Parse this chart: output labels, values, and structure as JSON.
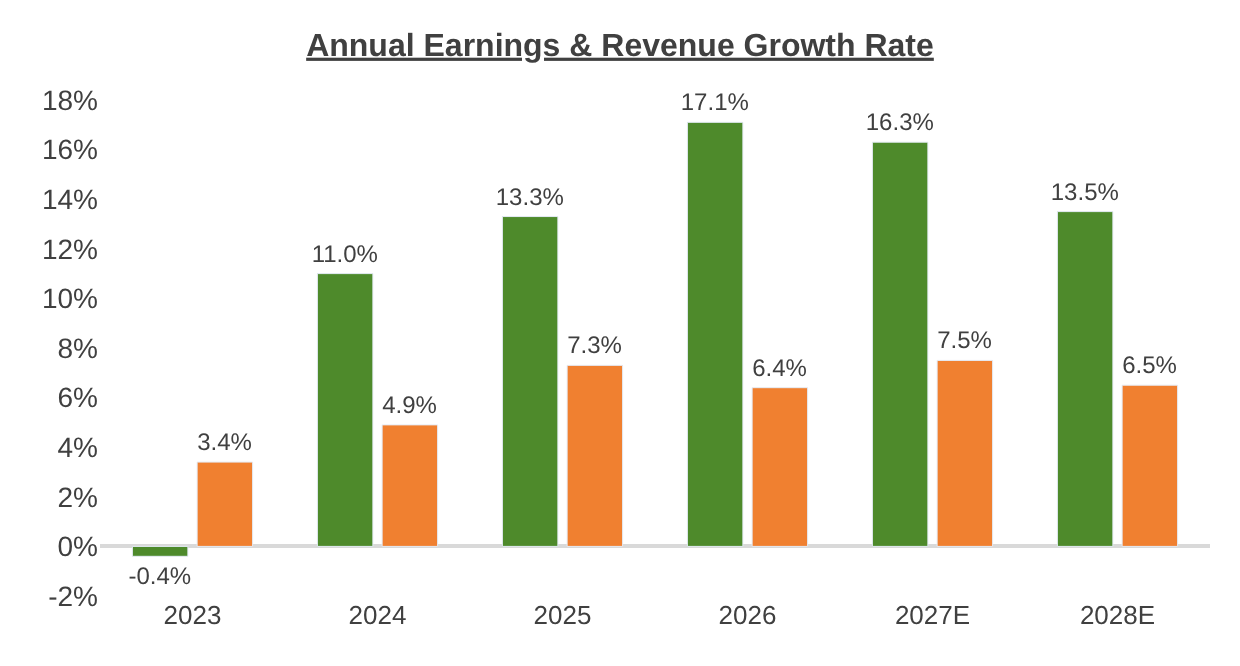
{
  "chart_data": {
    "type": "bar",
    "title": "Annual Earnings & Revenue Growth Rate",
    "categories": [
      "2023",
      "2024",
      "2025",
      "2026",
      "2027E",
      "2028E"
    ],
    "series": [
      {
        "color": "#4e8a2b",
        "values": [
          -0.4,
          11.0,
          13.3,
          17.1,
          16.3,
          13.5
        ],
        "value_labels": [
          "-0.4%",
          "11.0%",
          "13.3%",
          "17.1%",
          "16.3%",
          "13.5%"
        ]
      },
      {
        "color": "#f08030",
        "values": [
          3.4,
          4.9,
          7.3,
          6.4,
          7.5,
          6.5
        ],
        "value_labels": [
          "3.4%",
          "4.9%",
          "7.3%",
          "6.4%",
          "7.5%",
          "6.5%"
        ]
      }
    ],
    "ylim": [
      -2,
      18
    ],
    "yticks": [
      {
        "value": -2,
        "label": "-2%"
      },
      {
        "value": 0,
        "label": "0%"
      },
      {
        "value": 2,
        "label": "2%"
      },
      {
        "value": 4,
        "label": "4%"
      },
      {
        "value": 6,
        "label": "6%"
      },
      {
        "value": 8,
        "label": "8%"
      },
      {
        "value": 10,
        "label": "10%"
      },
      {
        "value": 12,
        "label": "12%"
      },
      {
        "value": 14,
        "label": "14%"
      },
      {
        "value": 16,
        "label": "16%"
      },
      {
        "value": 18,
        "label": "18%"
      }
    ]
  }
}
